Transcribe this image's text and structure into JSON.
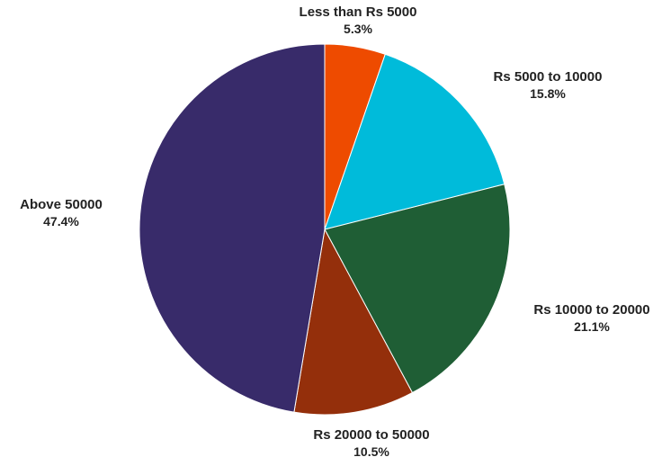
{
  "chart_data": {
    "type": "pie",
    "title": "",
    "slices": [
      {
        "label": "Less than Rs 5000",
        "value": 5.3,
        "value_label": "5.3%",
        "color": "#EE4B00"
      },
      {
        "label": "Rs 5000 to 10000",
        "value": 15.8,
        "value_label": "15.8%",
        "color": "#00BBDA"
      },
      {
        "label": "Rs 10000 to 20000",
        "value": 21.1,
        "value_label": "21.1%",
        "color": "#1F5E35"
      },
      {
        "label": "Rs 20000 to 50000",
        "value": 10.5,
        "value_label": "10.5%",
        "color": "#942F0B"
      },
      {
        "label": "Above 50000",
        "value": 47.4,
        "value_label": "47.4%",
        "color": "#382B6A"
      }
    ],
    "start_angle_deg": 0,
    "direction": "clockwise",
    "legend": "none"
  }
}
